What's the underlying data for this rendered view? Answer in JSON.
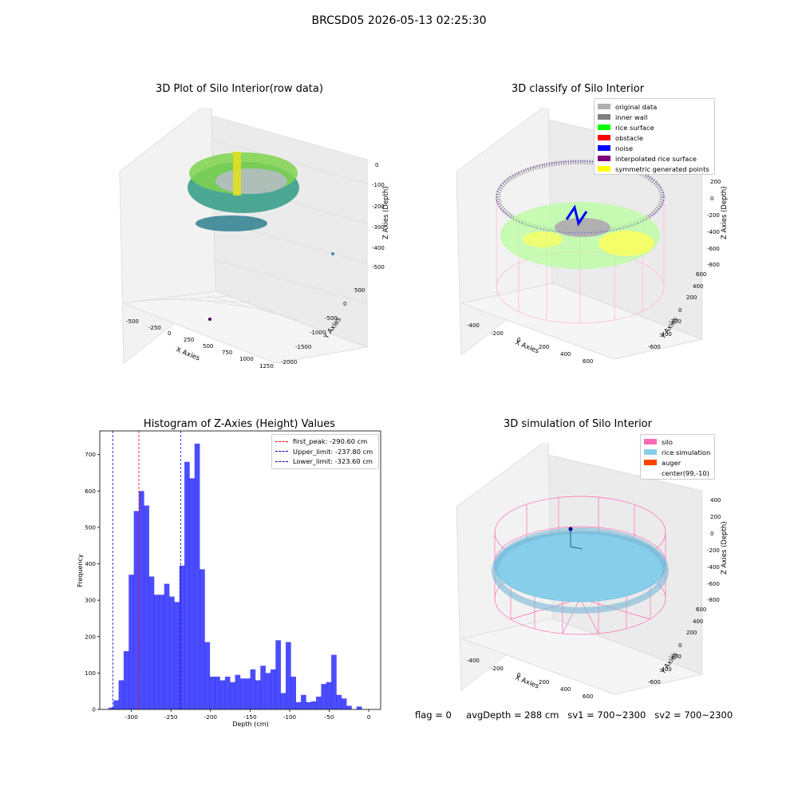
{
  "suptitle": "BRCSD05 2026-05-13 02:25:30",
  "footer": {
    "flag": "flag = 0",
    "avg_depth": "avgDepth = 288 cm",
    "sv1": "sv1 = 700~2300",
    "sv2": "sv2 = 700~2300"
  },
  "panels": {
    "raw": {
      "title": "3D Plot of Silo Interior(row data)",
      "xlabel": "X Axies",
      "ylabel": "Y Axies",
      "zlabel": "Z Axies (Depth)",
      "xticks": [
        "-500",
        "-250",
        "0",
        "250",
        "500",
        "750",
        "1000",
        "1250"
      ],
      "yticks": [
        "-2000",
        "-1500",
        "-1000",
        "-500",
        "0",
        "500"
      ],
      "zticks": [
        "0",
        "-100",
        "-200",
        "-300",
        "-400",
        "-500"
      ]
    },
    "classify": {
      "title": "3D classify of Silo Interior",
      "xlabel": "X Axies",
      "ylabel": "Y Axies",
      "zlabel": "Z Axies (Depth)",
      "xticks": [
        "-400",
        "-200",
        "0",
        "200",
        "400",
        "600"
      ],
      "yticks": [
        "-600",
        "-400",
        "-200",
        "0",
        "200",
        "400",
        "600"
      ],
      "zticks": [
        "200",
        "0",
        "-200",
        "-400",
        "-600",
        "-800"
      ],
      "legend": [
        {
          "label": "original data",
          "color": "#b0b0b0"
        },
        {
          "label": "inner wall",
          "color": "#808080"
        },
        {
          "label": "rice surface",
          "color": "#00ff00"
        },
        {
          "label": "obstacle",
          "color": "#ff0000"
        },
        {
          "label": "noise",
          "color": "#0000ff"
        },
        {
          "label": "interpolated rice surface",
          "color": "#800080"
        },
        {
          "label": "symmetric generated points",
          "color": "#ffff00"
        }
      ]
    },
    "simulation": {
      "title": "3D simulation of Silo Interior",
      "xlabel": "X Axies",
      "ylabel": "Y Axies",
      "zlabel": "Z Axies (Depth)",
      "xticks": [
        "-400",
        "-200",
        "0",
        "200",
        "400",
        "600"
      ],
      "yticks": [
        "-600",
        "-400",
        "-200",
        "0",
        "200",
        "400",
        "600"
      ],
      "zticks": [
        "400",
        "200",
        "0",
        "-200",
        "-400",
        "-600",
        "-800"
      ],
      "legend": [
        {
          "label": "silo",
          "color": "#ff69b4"
        },
        {
          "label": "rice simulation",
          "color": "#87ceeb"
        },
        {
          "label": "auger",
          "color": "#ff4500"
        },
        {
          "label": "center(99,-10)",
          "color": "#ffffff"
        }
      ]
    }
  },
  "chart_data": {
    "type": "bar",
    "title": "Histogram of Z-Axies (Height) Values",
    "xlabel": "Depth (cm)",
    "ylabel": "Frequency",
    "xlim": [
      -340,
      15
    ],
    "ylim": [
      0,
      765
    ],
    "xticks": [
      -300,
      -250,
      -200,
      -150,
      -100,
      -50,
      0
    ],
    "yticks": [
      0,
      100,
      200,
      300,
      400,
      500,
      600,
      700
    ],
    "bin_width": 6.4,
    "bins_start": -329,
    "values": [
      5,
      25,
      80,
      160,
      370,
      545,
      600,
      560,
      365,
      315,
      315,
      345,
      310,
      295,
      395,
      680,
      635,
      730,
      385,
      185,
      90,
      90,
      80,
      90,
      75,
      95,
      85,
      85,
      110,
      80,
      120,
      100,
      110,
      190,
      45,
      185,
      90,
      20,
      40,
      20,
      22,
      35,
      70,
      75,
      150,
      40,
      30,
      10,
      0,
      8
    ],
    "bar_color": "#0000ff",
    "legend_position": "top-right",
    "lines": [
      {
        "label": "first_peak: -290.60 cm",
        "value": -290.6,
        "color": "#ff0000"
      },
      {
        "label": "Upper_limit: -237.80 cm",
        "value": -237.8,
        "color": "#0000cc"
      },
      {
        "label": "Lower_limit: -323.60 cm",
        "value": -323.6,
        "color": "#0000cc"
      }
    ]
  }
}
